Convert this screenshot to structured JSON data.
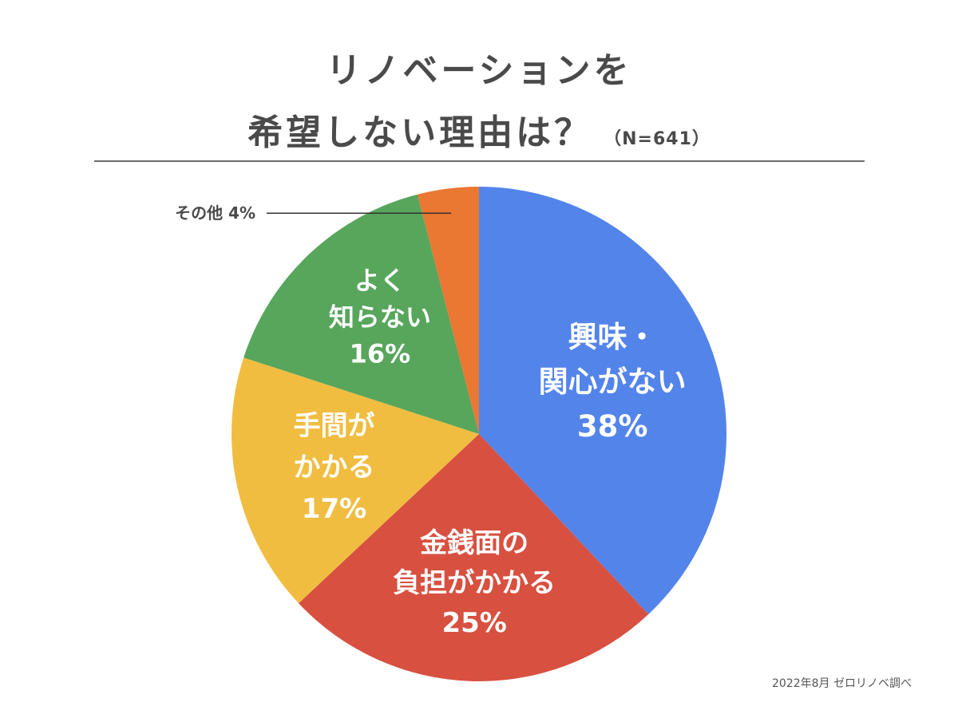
{
  "title": {
    "line1": "リノベーションを",
    "line2": "希望しない理由は？",
    "n_label": "（N=641）"
  },
  "source": "2022年8月 ゼロリノベ調べ",
  "chart_data": {
    "type": "pie",
    "slices": [
      {
        "label_lines": [
          "興味・",
          "関心がない"
        ],
        "value": 38,
        "value_label": "38%",
        "color": "#5384ea"
      },
      {
        "label_lines": [
          "金銭面の",
          "負担がかかる"
        ],
        "value": 25,
        "value_label": "25%",
        "color": "#d85040"
      },
      {
        "label_lines": [
          "手間が",
          "かかる"
        ],
        "value": 17,
        "value_label": "17%",
        "color": "#f0bd41"
      },
      {
        "label_lines": [
          "よく",
          "知らない"
        ],
        "value": 16,
        "value_label": "16%",
        "color": "#58a55c"
      },
      {
        "label_lines": [
          "その他"
        ],
        "value": 4,
        "value_label": "4%",
        "color": "#ea7732",
        "callout": true
      }
    ],
    "start": "12 o'clock",
    "direction": "clockwise",
    "legend": "none"
  }
}
